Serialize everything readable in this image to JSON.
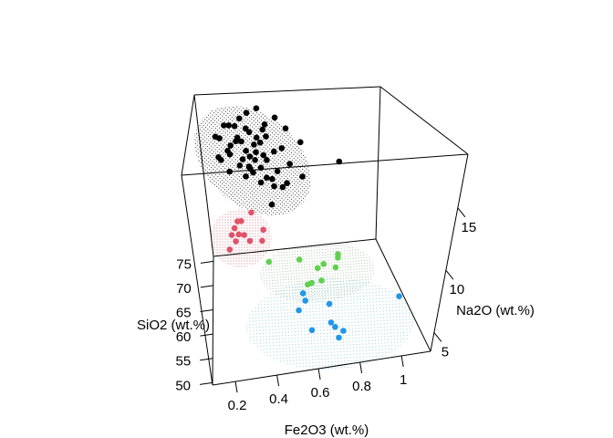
{
  "chart_data": {
    "type": "scatter",
    "dimensions": 3,
    "xlabel": "Fe2O3 (wt.%)",
    "ylabel": "SiO2 (wt.%)",
    "zlabel": "Na2O (wt.%)",
    "xlim": [
      0.09,
      1.14
    ],
    "ylim": [
      49.5,
      76
    ],
    "zlim": [
      3.5,
      19.3
    ],
    "xticks": [
      "0.2",
      "0.4",
      "0.6",
      "0.8",
      "1"
    ],
    "yticks": [
      "50",
      "55",
      "60",
      "65",
      "70",
      "75"
    ],
    "zticks": [
      "5",
      "10",
      "15"
    ],
    "grid": false,
    "box": true,
    "ellipsoids": true,
    "series": [
      {
        "color": "#000000",
        "points": [
          [
            0.27,
            71,
            17.7
          ],
          [
            0.37,
            73,
            18.2
          ],
          [
            0.43,
            75,
            18.0
          ],
          [
            0.46,
            72,
            17.3
          ],
          [
            0.33,
            74,
            17.4
          ],
          [
            0.3,
            71,
            17.6
          ],
          [
            0.19,
            73,
            16.1
          ],
          [
            0.24,
            75,
            16.5
          ],
          [
            0.31,
            72,
            16.2
          ],
          [
            0.36,
            74,
            16.4
          ],
          [
            0.41,
            71,
            16.4
          ],
          [
            0.45,
            73,
            16.5
          ],
          [
            0.53,
            75,
            17.0
          ],
          [
            0.57,
            72,
            16.8
          ],
          [
            0.21,
            74,
            15.6
          ],
          [
            0.27,
            71,
            15.8
          ],
          [
            0.33,
            73,
            15.5
          ],
          [
            0.38,
            75,
            15.7
          ],
          [
            0.43,
            72,
            15.6
          ],
          [
            0.47,
            74,
            15.5
          ],
          [
            0.2,
            71,
            14.8
          ],
          [
            0.25,
            73,
            14.7
          ],
          [
            0.3,
            75,
            14.9
          ],
          [
            0.35,
            72,
            14.9
          ],
          [
            0.4,
            74,
            14.8
          ],
          [
            0.44,
            71,
            14.7
          ],
          [
            0.55,
            73,
            14.6
          ],
          [
            0.67,
            75,
            14.4
          ],
          [
            0.21,
            72,
            14.2
          ],
          [
            0.26,
            74,
            14.0
          ],
          [
            0.31,
            71,
            13.9
          ],
          [
            0.37,
            73,
            14.0
          ],
          [
            0.41,
            75,
            13.7
          ],
          [
            0.46,
            72,
            13.9
          ],
          [
            0.51,
            74,
            14.0
          ],
          [
            0.58,
            71,
            13.7
          ],
          [
            0.25,
            73,
            12.7
          ],
          [
            0.33,
            75,
            13.1
          ],
          [
            0.38,
            72,
            12.8
          ],
          [
            0.43,
            74,
            12.5
          ],
          [
            0.48,
            71,
            12.4
          ],
          [
            0.52,
            73,
            12.4
          ],
          [
            0.37,
            75,
            12.1
          ],
          [
            0.42,
            72,
            11.8
          ],
          [
            0.46,
            74,
            11.5
          ],
          [
            0.56,
            71,
            11.9
          ],
          [
            0.66,
            73,
            11.7
          ],
          [
            0.34,
            75,
            11.4
          ],
          [
            0.54,
            72,
            11.2
          ],
          [
            0.5,
            74,
            10.6
          ],
          [
            0.47,
            71,
            10.0
          ],
          [
            0.87,
            73,
            12.9
          ],
          [
            0.36,
            72,
            13.4
          ],
          [
            0.4,
            74,
            13.3
          ]
        ]
      },
      {
        "color": "#DF536B",
        "points": [
          [
            0.35,
            70,
            9.8
          ],
          [
            0.29,
            70,
            9.1
          ],
          [
            0.27,
            70,
            9.1
          ],
          [
            0.25,
            70,
            8.5
          ],
          [
            0.41,
            70,
            8.1
          ],
          [
            0.23,
            70,
            7.9
          ],
          [
            0.27,
            70,
            7.9
          ],
          [
            0.3,
            70,
            7.8
          ],
          [
            0.25,
            70,
            7.3
          ],
          [
            0.33,
            70,
            7.2
          ],
          [
            0.4,
            70,
            7.1
          ],
          [
            0.21,
            70,
            6.6
          ]
        ]
      },
      {
        "color": "#61D04F",
        "points": [
          [
            0.41,
            60,
            8.9
          ],
          [
            0.56,
            60,
            8.8
          ],
          [
            0.75,
            60,
            8.9
          ],
          [
            0.75,
            60,
            8.6
          ],
          [
            0.68,
            60,
            8.2
          ],
          [
            0.65,
            60,
            7.9
          ],
          [
            0.74,
            60,
            7.8
          ],
          [
            0.67,
            60,
            6.8
          ],
          [
            0.62,
            60,
            6.7
          ],
          [
            0.6,
            60,
            6.6
          ]
        ]
      },
      {
        "color": "#2297E6",
        "points": [
          [
            0.54,
            52,
            8.7
          ],
          [
            0.55,
            52,
            8.1
          ],
          [
            0.52,
            52,
            7.4
          ],
          [
            0.66,
            52,
            7.6
          ],
          [
            0.98,
            52,
            7.5
          ],
          [
            0.67,
            52,
            6.1
          ],
          [
            0.69,
            52,
            5.7
          ],
          [
            0.73,
            52,
            5.3
          ],
          [
            0.58,
            52,
            5.7
          ],
          [
            0.71,
            52,
            4.8
          ]
        ]
      }
    ]
  }
}
